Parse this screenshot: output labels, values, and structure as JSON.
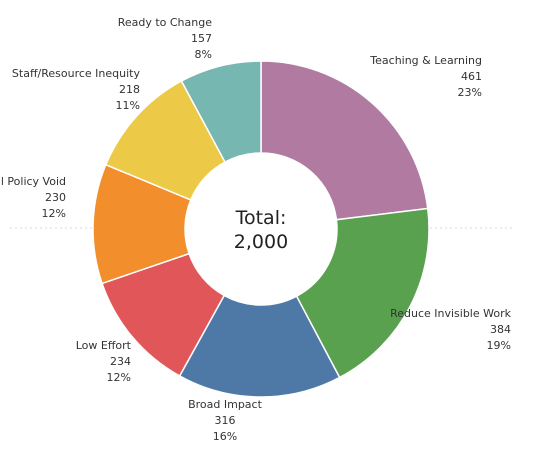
{
  "chart_data": {
    "type": "pie",
    "donut": true,
    "categories": [
      "Teaching & Learning",
      "Reduce Invisible Work",
      "Broad Impact",
      "Low Effort",
      "Fill Policy Void",
      "Staff/Resource Inequity",
      "Ready to Change"
    ],
    "values": [
      461,
      384,
      316,
      234,
      230,
      218,
      157
    ],
    "percent_labels": [
      "23%",
      "19%",
      "16%",
      "12%",
      "12%",
      "11%",
      "8%"
    ],
    "colors": [
      "#b07aa1",
      "#59a14f",
      "#4e79a7",
      "#e15759",
      "#f28e2b",
      "#edc948",
      "#76b7b2"
    ],
    "center_label": {
      "line1": "Total:",
      "line2": "2,000"
    },
    "legend": "none"
  }
}
